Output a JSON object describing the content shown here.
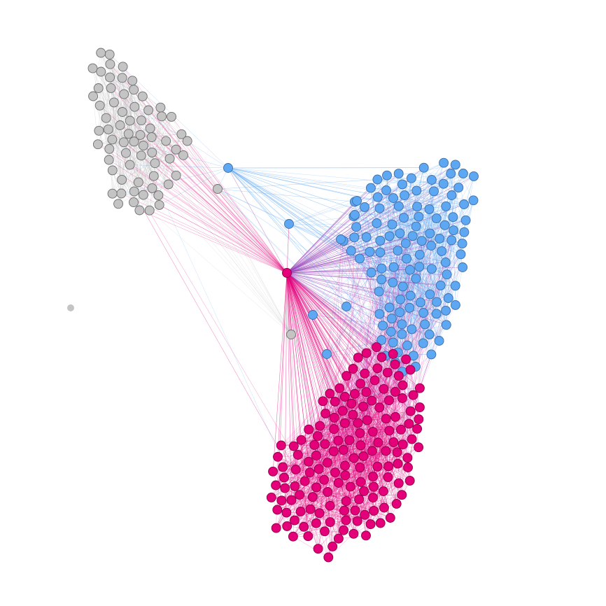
{
  "groups": [
    {
      "name": "gray",
      "fill": "#c4c4c4",
      "stroke": "#6f6f6f",
      "edge": "#c4c4c4"
    },
    {
      "name": "blue",
      "fill": "#5ea7f2",
      "stroke": "#3d6fa8",
      "edge": "#5ea7f2"
    },
    {
      "name": "pink",
      "fill": "#e5007a",
      "stroke": "#8a0048",
      "edge": "#e5007a"
    }
  ],
  "hubs": [
    {
      "group": 2,
      "role": "hub"
    },
    {
      "group": 1,
      "role": "connector-upper"
    },
    {
      "group": 1,
      "role": "connector-middle"
    },
    {
      "group": 0,
      "role": "connector-gray"
    },
    {
      "group": 0,
      "role": "connector-lower-gray"
    },
    {
      "group": 1,
      "role": "connector-lower-blue"
    },
    {
      "group": 1,
      "role": "connector-lower-blue-2"
    }
  ],
  "isolate": {
    "group": 0,
    "count": 1
  }
}
